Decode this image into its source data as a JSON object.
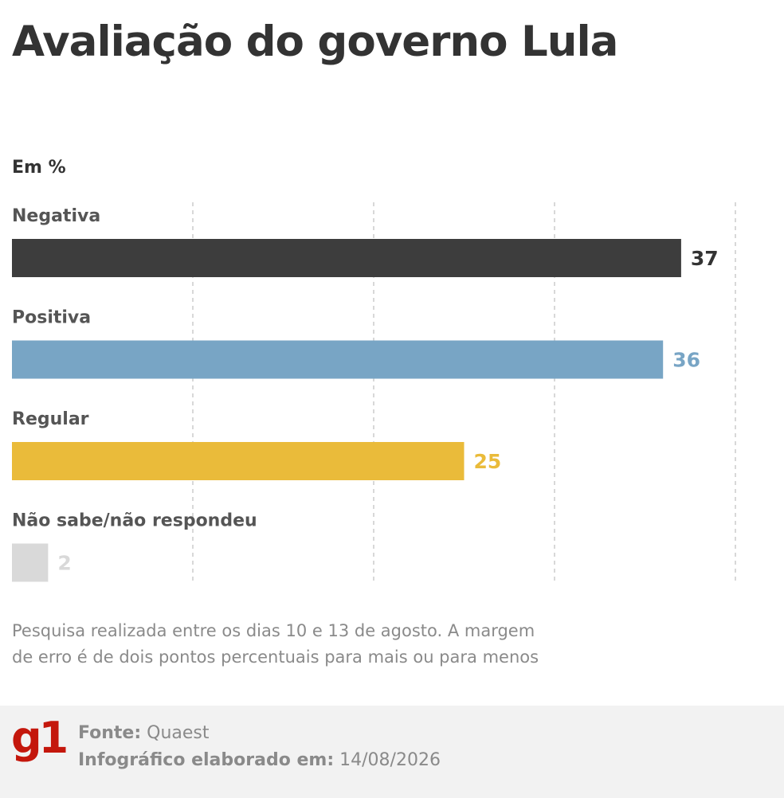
{
  "header": {
    "title": "Avaliação do governo Lula",
    "unit": "Em %"
  },
  "chart_data": {
    "type": "bar",
    "orientation": "horizontal",
    "categories": [
      "Negativa",
      "Positiva",
      "Regular",
      "Não sabe/não respondeu"
    ],
    "values": [
      37,
      36,
      25,
      2
    ],
    "value_labels": [
      "37",
      "36",
      "25",
      "2"
    ],
    "colors": [
      "#3d3d3d",
      "#78a5c5",
      "#eabb3a",
      "#d9d9d9"
    ],
    "label_colors": [
      "#333333",
      "#78a5c5",
      "#eabb3a",
      "#d9d9d9"
    ],
    "xlim": [
      0,
      40
    ],
    "gridlines_at": [
      10,
      20,
      30,
      40
    ],
    "grid": true,
    "grid_style": "dashed vertical",
    "title": "Avaliação do governo Lula",
    "ylabel": "",
    "xlabel": ""
  },
  "note": {
    "line1": "Pesquisa realizada entre os dias 10 e 13 de agosto. A margem",
    "line2": "de erro é de dois pontos percentuais para mais ou para menos"
  },
  "footer": {
    "logo": "g1",
    "source_label": "Fonte:",
    "source_value": "Quaest",
    "made_label": "Infográfico elaborado em:",
    "made_value": "14/08/2026"
  }
}
